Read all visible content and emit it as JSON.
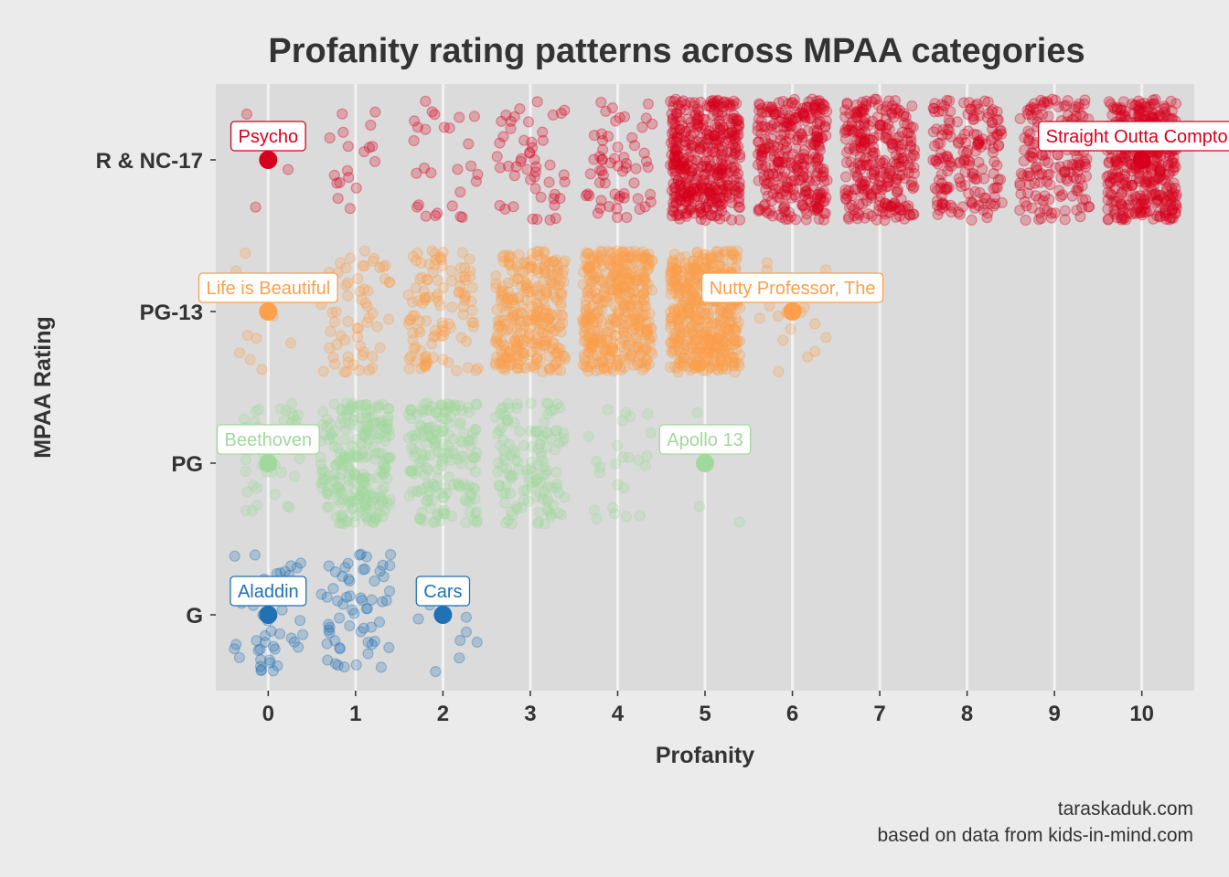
{
  "chart_data": {
    "type": "scatter",
    "title": "Profanity rating patterns across MPAA categories",
    "xlabel": "Profanity",
    "ylabel": "MPAA Rating",
    "xlim": [
      -0.6,
      10.6
    ],
    "x_ticks": [
      "0",
      "1",
      "2",
      "3",
      "4",
      "5",
      "6",
      "7",
      "8",
      "9",
      "10"
    ],
    "categories": [
      "G",
      "PG",
      "PG-13",
      "R & NC-17"
    ],
    "grid": true,
    "jitter": {
      "x": 0.4,
      "y": 0.4
    },
    "point_opacity": 0.25,
    "series": [
      {
        "name": "G",
        "color": "#2171b5",
        "counts": [
          45,
          60,
          10,
          0,
          0,
          0,
          0,
          0,
          0,
          0,
          0
        ]
      },
      {
        "name": "PG",
        "color": "#a1d99b",
        "counts": [
          40,
          240,
          180,
          130,
          25,
          3,
          0,
          0,
          0,
          0,
          0
        ]
      },
      {
        "name": "PG-13",
        "color": "#fd9f4b",
        "counts": [
          12,
          60,
          110,
          300,
          420,
          500,
          20,
          0,
          0,
          0,
          0
        ]
      },
      {
        "name": "R & NC-17",
        "color": "#d7001c",
        "counts": [
          3,
          18,
          28,
          50,
          60,
          420,
          310,
          280,
          170,
          160,
          400
        ]
      }
    ],
    "annotations": [
      {
        "label": "Aladdin",
        "category": "G",
        "x": 0
      },
      {
        "label": "Cars",
        "category": "G",
        "x": 2
      },
      {
        "label": "Beethoven",
        "category": "PG",
        "x": 0
      },
      {
        "label": "Apollo 13",
        "category": "PG",
        "x": 5
      },
      {
        "label": "Life is Beautiful",
        "category": "PG-13",
        "x": 0
      },
      {
        "label": "Nutty Professor, The",
        "category": "PG-13",
        "x": 6
      },
      {
        "label": "Psycho",
        "category": "R & NC-17",
        "x": 0
      },
      {
        "label": "Straight Outta Compton",
        "category": "R & NC-17",
        "x": 10
      }
    ],
    "caption": [
      "taraskaduk.com",
      "based on data from kids-in-mind.com"
    ]
  },
  "colors": {
    "background": "#ebebeb",
    "panel": "#dbdbdb",
    "grid": "#f2f2f2",
    "text": "#333333"
  }
}
